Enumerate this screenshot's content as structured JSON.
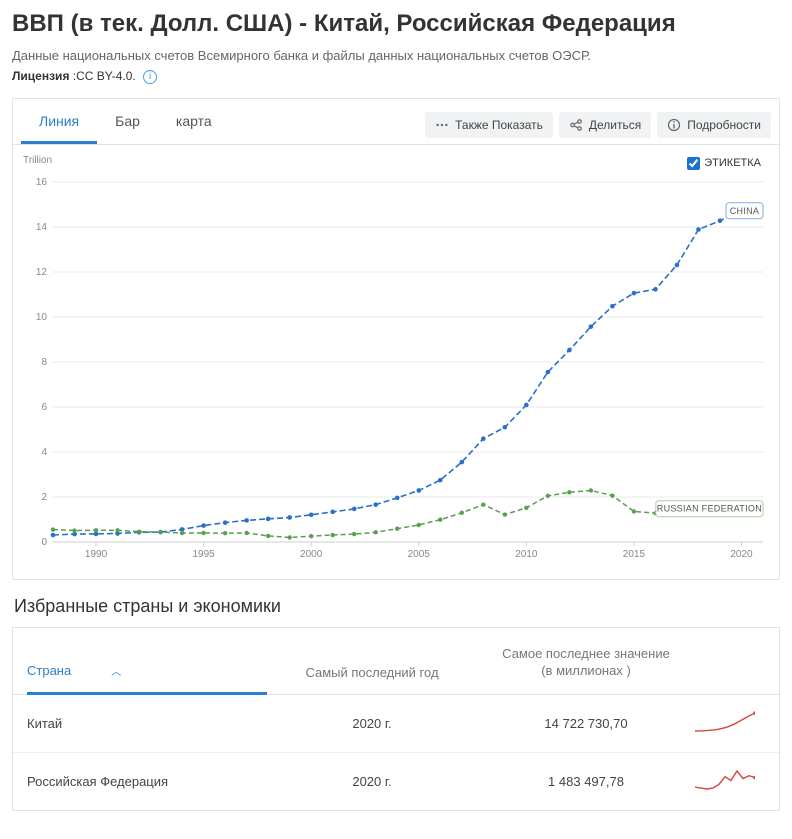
{
  "header": {
    "title": "ВВП (в тек. Долл. США) - Китай, Российская Федерация",
    "subtitle": "Данные национальных счетов Всемирного банка и файлы данных национальных счетов ОЭСР.",
    "license_label": "Лицензия",
    "license_value": ":CC BY-4.0."
  },
  "viewTabs": {
    "line": "Линия",
    "bar": "Бар",
    "map": "карта",
    "active": "line"
  },
  "actions": {
    "alsoShow": "Также Показать",
    "share": "Делиться",
    "details": "Подробности"
  },
  "chart": {
    "unit": "Trillion",
    "labelToggle": "ЭТИКЕТКА",
    "labelChecked": true,
    "background": "#ffffff",
    "grid_color": "#e8e8e8",
    "axis_color": "#cfcfcf",
    "tick_font_size": 10,
    "tick_color": "#888888",
    "y": {
      "min": 0,
      "max": 16,
      "step": 2,
      "ticks": [
        0,
        2,
        4,
        6,
        8,
        10,
        12,
        14,
        16
      ]
    },
    "x": {
      "min": 1988,
      "max": 2021,
      "tick_start": 1990,
      "tick_step": 5,
      "ticks": [
        1990,
        1995,
        2000,
        2005,
        2010,
        2015,
        2020
      ]
    },
    "series": [
      {
        "id": "china",
        "tag": "CHINA",
        "color": "#2a6fc9",
        "line_width": 1.6,
        "dash": "6,3",
        "marker": "circle",
        "marker_size": 2.3,
        "tag_box_stroke": "#7fb0e6",
        "data": [
          [
            1988,
            0.31
          ],
          [
            1989,
            0.35
          ],
          [
            1990,
            0.36
          ],
          [
            1991,
            0.38
          ],
          [
            1992,
            0.43
          ],
          [
            1993,
            0.44
          ],
          [
            1994,
            0.56
          ],
          [
            1995,
            0.73
          ],
          [
            1996,
            0.86
          ],
          [
            1997,
            0.96
          ],
          [
            1998,
            1.03
          ],
          [
            1999,
            1.09
          ],
          [
            2000,
            1.21
          ],
          [
            2001,
            1.34
          ],
          [
            2002,
            1.47
          ],
          [
            2003,
            1.66
          ],
          [
            2004,
            1.96
          ],
          [
            2005,
            2.29
          ],
          [
            2006,
            2.75
          ],
          [
            2007,
            3.55
          ],
          [
            2008,
            4.59
          ],
          [
            2009,
            5.1
          ],
          [
            2010,
            6.09
          ],
          [
            2011,
            7.55
          ],
          [
            2012,
            8.53
          ],
          [
            2013,
            9.57
          ],
          [
            2014,
            10.48
          ],
          [
            2015,
            11.06
          ],
          [
            2016,
            11.23
          ],
          [
            2017,
            12.31
          ],
          [
            2018,
            13.89
          ],
          [
            2019,
            14.28
          ],
          [
            2020,
            14.72
          ]
        ]
      },
      {
        "id": "russia",
        "tag": "RUSSIAN FEDERATION",
        "color": "#5a9e4f",
        "line_width": 1.5,
        "dash": "5,3",
        "marker": "circle",
        "marker_size": 2.2,
        "tag_box_stroke": "#a8d09f",
        "data": [
          [
            1988,
            0.55
          ],
          [
            1989,
            0.51
          ],
          [
            1990,
            0.52
          ],
          [
            1991,
            0.52
          ],
          [
            1992,
            0.46
          ],
          [
            1993,
            0.44
          ],
          [
            1994,
            0.4
          ],
          [
            1995,
            0.4
          ],
          [
            1996,
            0.39
          ],
          [
            1997,
            0.4
          ],
          [
            1998,
            0.27
          ],
          [
            1999,
            0.2
          ],
          [
            2000,
            0.26
          ],
          [
            2001,
            0.31
          ],
          [
            2002,
            0.35
          ],
          [
            2003,
            0.43
          ],
          [
            2004,
            0.59
          ],
          [
            2005,
            0.76
          ],
          [
            2006,
            0.99
          ],
          [
            2007,
            1.3
          ],
          [
            2008,
            1.66
          ],
          [
            2009,
            1.22
          ],
          [
            2010,
            1.52
          ],
          [
            2011,
            2.05
          ],
          [
            2012,
            2.21
          ],
          [
            2013,
            2.29
          ],
          [
            2014,
            2.06
          ],
          [
            2015,
            1.36
          ],
          [
            2016,
            1.28
          ],
          [
            2017,
            1.57
          ],
          [
            2018,
            1.66
          ],
          [
            2019,
            1.69
          ],
          [
            2020,
            1.48
          ]
        ]
      }
    ]
  },
  "tableSection": {
    "heading": "Избранные страны и экономики",
    "columns": {
      "country": "Страна",
      "year": "Самый последний год",
      "value_l1": "Самое последнее значение",
      "value_l2": "(в миллионах )"
    },
    "rows": [
      {
        "country": "Китай",
        "year": "2020 г.",
        "value": "14 722 730,70",
        "spark": {
          "color": "#d9453d",
          "points": [
            0,
            0.2,
            0.5,
            1,
            2,
            3.5,
            6,
            9,
            12,
            14.7
          ]
        }
      },
      {
        "country": "Российская Федерация",
        "year": "2020 г.",
        "value": "1 483 497,78",
        "spark": {
          "color": "#d9453d",
          "points": [
            0.5,
            0.4,
            0.3,
            0.4,
            0.8,
            1.6,
            1.2,
            2.2,
            1.4,
            1.7,
            1.5
          ]
        }
      }
    ]
  }
}
